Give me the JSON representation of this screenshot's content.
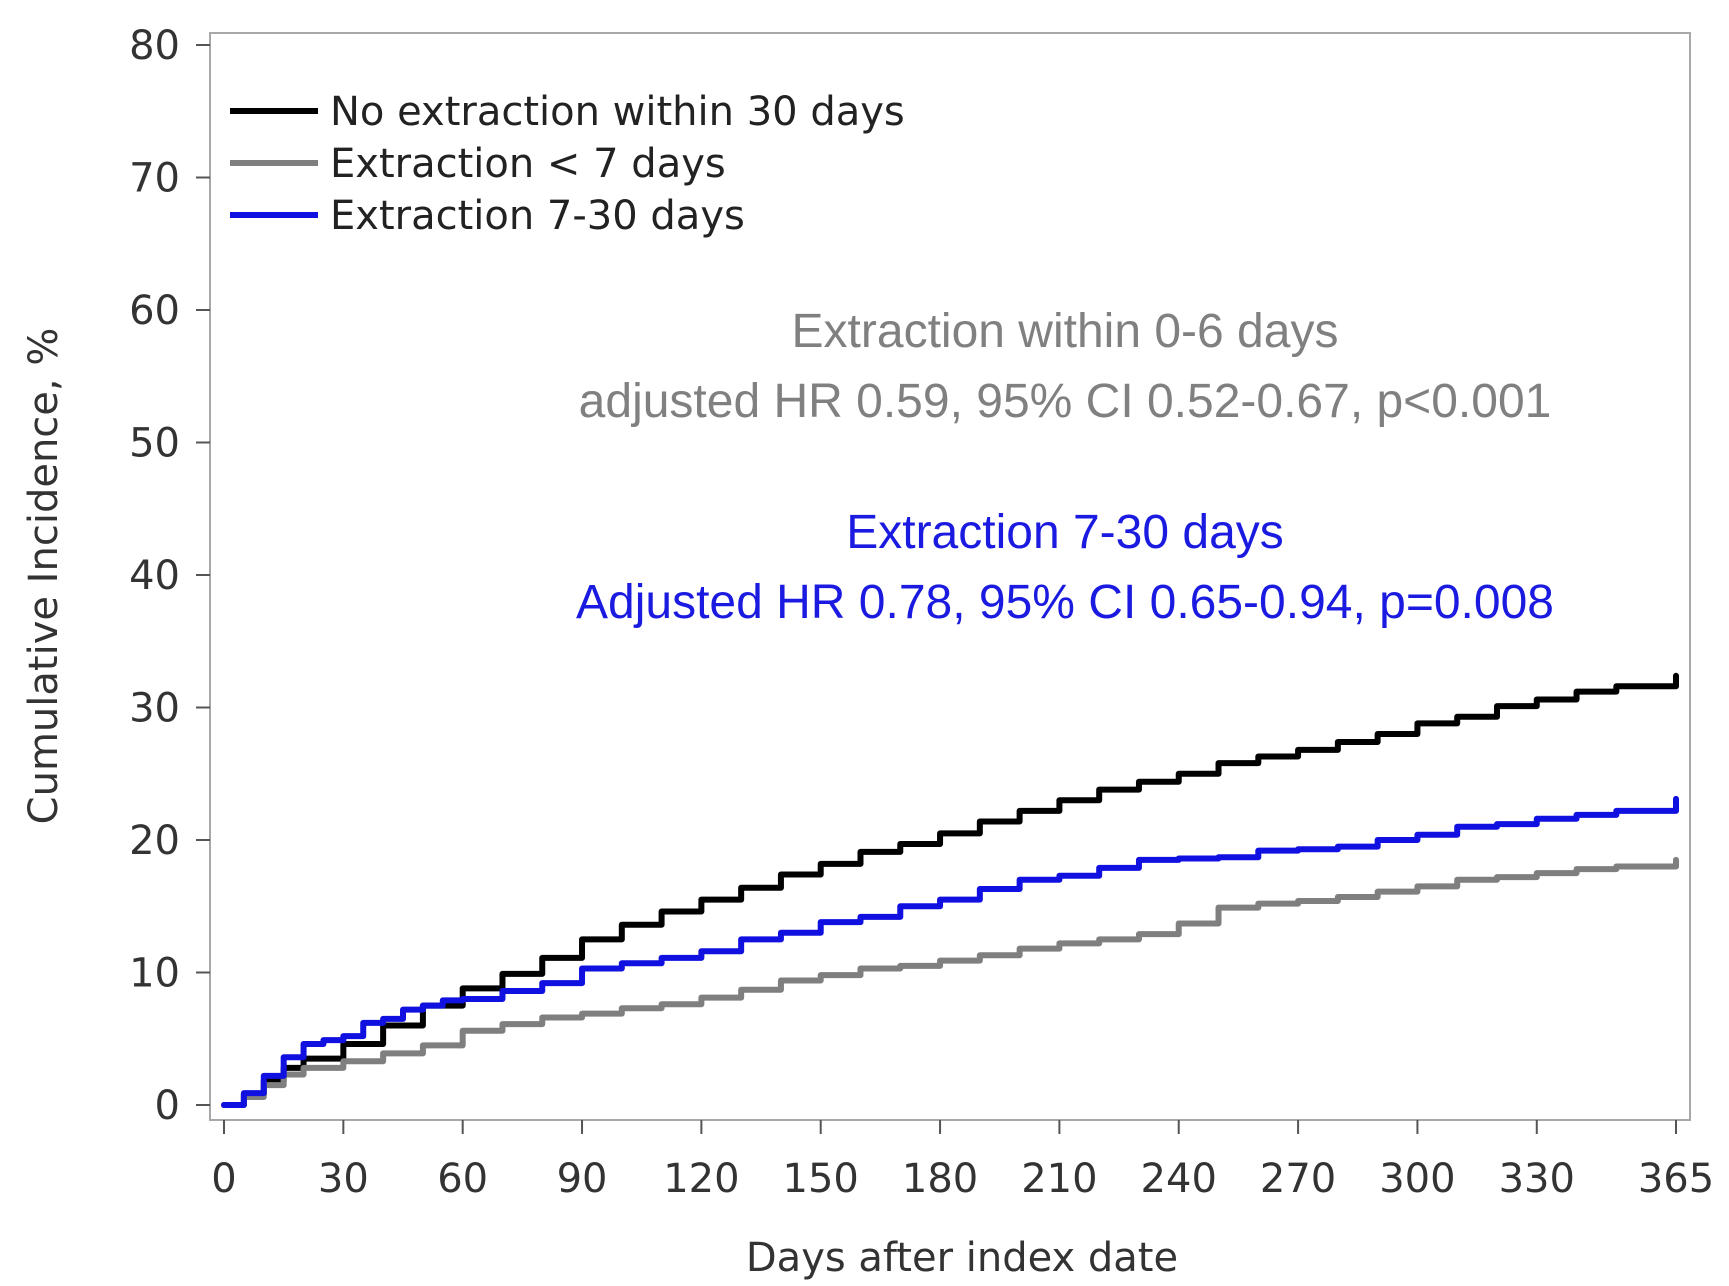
{
  "chart_data": {
    "type": "line",
    "title": "",
    "xlabel": "Days after index date",
    "ylabel": "Cumulative Incidence, %",
    "xlim": [
      0,
      365
    ],
    "ylim": [
      0,
      80
    ],
    "x_ticks": [
      0,
      30,
      60,
      90,
      120,
      150,
      180,
      210,
      240,
      270,
      300,
      330,
      365
    ],
    "y_ticks": [
      0,
      10,
      20,
      30,
      40,
      50,
      60,
      70,
      80
    ],
    "grid": false,
    "legend_position": "top-left",
    "series": [
      {
        "name": "No extraction within 30 days",
        "color": "#000000",
        "points": [
          [
            0,
            0
          ],
          [
            5,
            0.8
          ],
          [
            10,
            1.8
          ],
          [
            15,
            2.8
          ],
          [
            20,
            3.5
          ],
          [
            30,
            4.6
          ],
          [
            40,
            6.0
          ],
          [
            50,
            7.5
          ],
          [
            60,
            8.8
          ],
          [
            70,
            9.9
          ],
          [
            80,
            11.1
          ],
          [
            90,
            12.5
          ],
          [
            100,
            13.6
          ],
          [
            110,
            14.6
          ],
          [
            120,
            15.5
          ],
          [
            130,
            16.4
          ],
          [
            140,
            17.4
          ],
          [
            150,
            18.2
          ],
          [
            160,
            19.1
          ],
          [
            170,
            19.7
          ],
          [
            180,
            20.5
          ],
          [
            190,
            21.4
          ],
          [
            200,
            22.2
          ],
          [
            210,
            23.0
          ],
          [
            220,
            23.8
          ],
          [
            230,
            24.4
          ],
          [
            240,
            25.0
          ],
          [
            250,
            25.8
          ],
          [
            260,
            26.3
          ],
          [
            270,
            26.8
          ],
          [
            280,
            27.4
          ],
          [
            290,
            28.0
          ],
          [
            300,
            28.8
          ],
          [
            310,
            29.3
          ],
          [
            320,
            30.1
          ],
          [
            330,
            30.6
          ],
          [
            340,
            31.2
          ],
          [
            350,
            31.6
          ],
          [
            365,
            32.4
          ]
        ]
      },
      {
        "name": "Extraction < 7 days",
        "color": "#7f7f7f",
        "points": [
          [
            0,
            0
          ],
          [
            5,
            0.6
          ],
          [
            10,
            1.5
          ],
          [
            15,
            2.3
          ],
          [
            20,
            2.8
          ],
          [
            30,
            3.3
          ],
          [
            40,
            3.9
          ],
          [
            50,
            4.5
          ],
          [
            60,
            5.6
          ],
          [
            70,
            6.1
          ],
          [
            80,
            6.6
          ],
          [
            90,
            6.9
          ],
          [
            100,
            7.3
          ],
          [
            110,
            7.6
          ],
          [
            120,
            8.1
          ],
          [
            130,
            8.7
          ],
          [
            140,
            9.4
          ],
          [
            150,
            9.8
          ],
          [
            160,
            10.3
          ],
          [
            170,
            10.5
          ],
          [
            180,
            10.9
          ],
          [
            190,
            11.3
          ],
          [
            200,
            11.8
          ],
          [
            210,
            12.2
          ],
          [
            220,
            12.5
          ],
          [
            230,
            12.9
          ],
          [
            240,
            13.7
          ],
          [
            250,
            14.9
          ],
          [
            260,
            15.2
          ],
          [
            270,
            15.4
          ],
          [
            280,
            15.7
          ],
          [
            290,
            16.1
          ],
          [
            300,
            16.5
          ],
          [
            310,
            17.0
          ],
          [
            320,
            17.2
          ],
          [
            330,
            17.5
          ],
          [
            340,
            17.8
          ],
          [
            350,
            18.0
          ],
          [
            365,
            18.5
          ]
        ]
      },
      {
        "name": "Extraction 7-30 days",
        "color": "#1010e0",
        "points": [
          [
            0,
            0
          ],
          [
            5,
            0.9
          ],
          [
            10,
            2.2
          ],
          [
            15,
            3.6
          ],
          [
            20,
            4.6
          ],
          [
            25,
            4.9
          ],
          [
            30,
            5.2
          ],
          [
            35,
            6.2
          ],
          [
            40,
            6.5
          ],
          [
            45,
            7.2
          ],
          [
            50,
            7.5
          ],
          [
            55,
            7.9
          ],
          [
            60,
            8.0
          ],
          [
            70,
            8.6
          ],
          [
            80,
            9.2
          ],
          [
            90,
            10.3
          ],
          [
            100,
            10.7
          ],
          [
            110,
            11.1
          ],
          [
            120,
            11.6
          ],
          [
            130,
            12.5
          ],
          [
            140,
            13.0
          ],
          [
            150,
            13.8
          ],
          [
            160,
            14.2
          ],
          [
            170,
            15.0
          ],
          [
            180,
            15.5
          ],
          [
            190,
            16.3
          ],
          [
            200,
            17.0
          ],
          [
            210,
            17.3
          ],
          [
            220,
            17.9
          ],
          [
            230,
            18.5
          ],
          [
            240,
            18.6
          ],
          [
            250,
            18.7
          ],
          [
            260,
            19.2
          ],
          [
            270,
            19.3
          ],
          [
            280,
            19.5
          ],
          [
            290,
            20.0
          ],
          [
            300,
            20.4
          ],
          [
            310,
            21.0
          ],
          [
            320,
            21.2
          ],
          [
            330,
            21.6
          ],
          [
            340,
            21.9
          ],
          [
            350,
            22.2
          ],
          [
            365,
            23.1
          ]
        ]
      }
    ],
    "annotations": [
      {
        "lines": [
          "Extraction within 0-6 days",
          "adjusted HR 0.59, 95% CI 0.52-0.67, p<0.001"
        ],
        "color": "#808080"
      },
      {
        "lines": [
          "Extraction 7-30 days",
          "Adjusted HR 0.78, 95% CI 0.65-0.94, p=0.008"
        ],
        "color": "#1a1ae0"
      }
    ]
  }
}
